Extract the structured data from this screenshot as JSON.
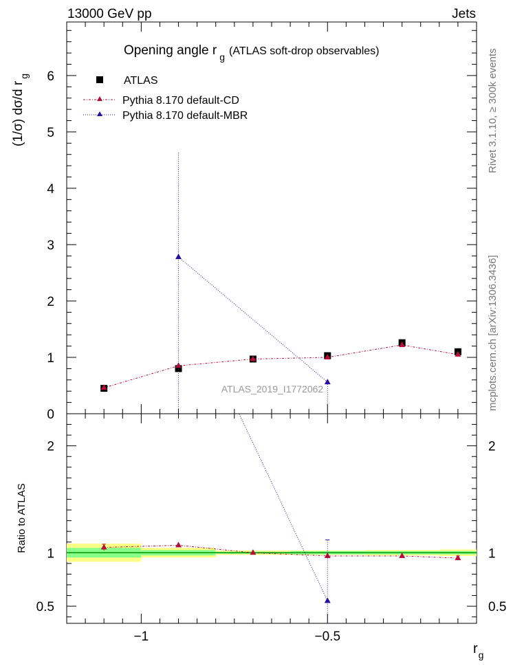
{
  "header": {
    "left": "13000 GeV pp",
    "right": "Jets"
  },
  "side_labels": {
    "rivet": "Rivet 3.1.10, ≥ 300k events",
    "mcplots": "mcplots.cern.ch [arXiv:1306.3436]"
  },
  "chart_data": {
    "type": "scatter",
    "title": "Opening angle r_g (ATLAS soft-drop observables)",
    "title_main": "Opening angle r",
    "title_sub": "g",
    "title_rest": "(ATLAS soft-drop observables)",
    "watermark": "ATLAS_2019_I1772062",
    "xlabel": "r",
    "xlabel_sub": "g",
    "ylabel": "(1/σ) dσ/d r",
    "ylabel_sub": "g",
    "ratio_ylabel": "Ratio to ATLAS",
    "xlim": [
      -1.2,
      -0.1
    ],
    "ylim_top": [
      0,
      6.95
    ],
    "ylim_ratio": [
      0.34,
      2.3
    ],
    "x_ticks": [
      {
        "value": -1.0,
        "label": "−1"
      },
      {
        "value": -0.5,
        "label": "−0.5"
      }
    ],
    "y_ticks_top": [
      {
        "value": 0,
        "label": "0"
      },
      {
        "value": 1,
        "label": "1"
      },
      {
        "value": 2,
        "label": "2"
      },
      {
        "value": 3,
        "label": "3"
      },
      {
        "value": 4,
        "label": "4"
      },
      {
        "value": 5,
        "label": "5"
      },
      {
        "value": 6,
        "label": "6"
      }
    ],
    "y_ticks_ratio": [
      {
        "value": 0.5,
        "label": "0.5"
      },
      {
        "value": 1,
        "label": "1"
      },
      {
        "value": 2,
        "label": "2"
      }
    ],
    "legend_position": "top-left",
    "bins": [
      {
        "lo": -1.2,
        "hi": -1.0,
        "center": -1.1,
        "band_inner": 0.045,
        "band_outer": 0.085
      },
      {
        "lo": -1.0,
        "hi": -0.8,
        "center": -0.9,
        "band_inner": 0.025,
        "band_outer": 0.045
      },
      {
        "lo": -0.8,
        "hi": -0.6,
        "center": -0.7,
        "band_inner": 0.01,
        "band_outer": 0.02
      },
      {
        "lo": -0.6,
        "hi": -0.4,
        "center": -0.5,
        "band_inner": 0.015,
        "band_outer": 0.02
      },
      {
        "lo": -0.4,
        "hi": -0.2,
        "center": -0.3,
        "band_inner": 0.015,
        "band_outer": 0.025
      },
      {
        "lo": -0.2,
        "hi": -0.1,
        "center": -0.15,
        "band_inner": 0.015,
        "band_outer": 0.03
      }
    ],
    "series": [
      {
        "name": "ATLAS",
        "marker": "square",
        "color": "#000000",
        "x": [
          -1.1,
          -0.9,
          -0.7,
          -0.5,
          -0.3,
          -0.15
        ],
        "y": [
          0.45,
          0.8,
          0.97,
          1.03,
          1.26,
          1.1
        ]
      },
      {
        "name": "Pythia 8.170 default-CD",
        "marker": "triangle",
        "color": "#b0103a",
        "dash": "dashdot",
        "x": [
          -1.1,
          -0.9,
          -0.7,
          -0.5,
          -0.3,
          -0.15
        ],
        "y": [
          0.46,
          0.85,
          0.97,
          1.0,
          1.22,
          1.05
        ],
        "ratio": [
          1.05,
          1.07,
          1.0,
          0.97,
          0.97,
          0.95
        ],
        "ratio_err": [
          0.03,
          0.0,
          0.0,
          0.0,
          0.0,
          0.02
        ]
      },
      {
        "name": "Pythia 8.170 default-MBR",
        "marker": "triangle",
        "color": "#2a0f9e",
        "dash": "dotted",
        "x": [
          -0.9,
          -0.5
        ],
        "y": [
          2.78,
          0.56
        ],
        "y_err_up": [
          1.85,
          0.0
        ],
        "y_err_down": [
          2.78,
          0.56
        ],
        "ratio": [
          3.5,
          0.55
        ],
        "ratio_err_up": [
          0.0,
          0.57
        ],
        "ratio_err_down": [
          0.0,
          0.55
        ]
      }
    ]
  }
}
